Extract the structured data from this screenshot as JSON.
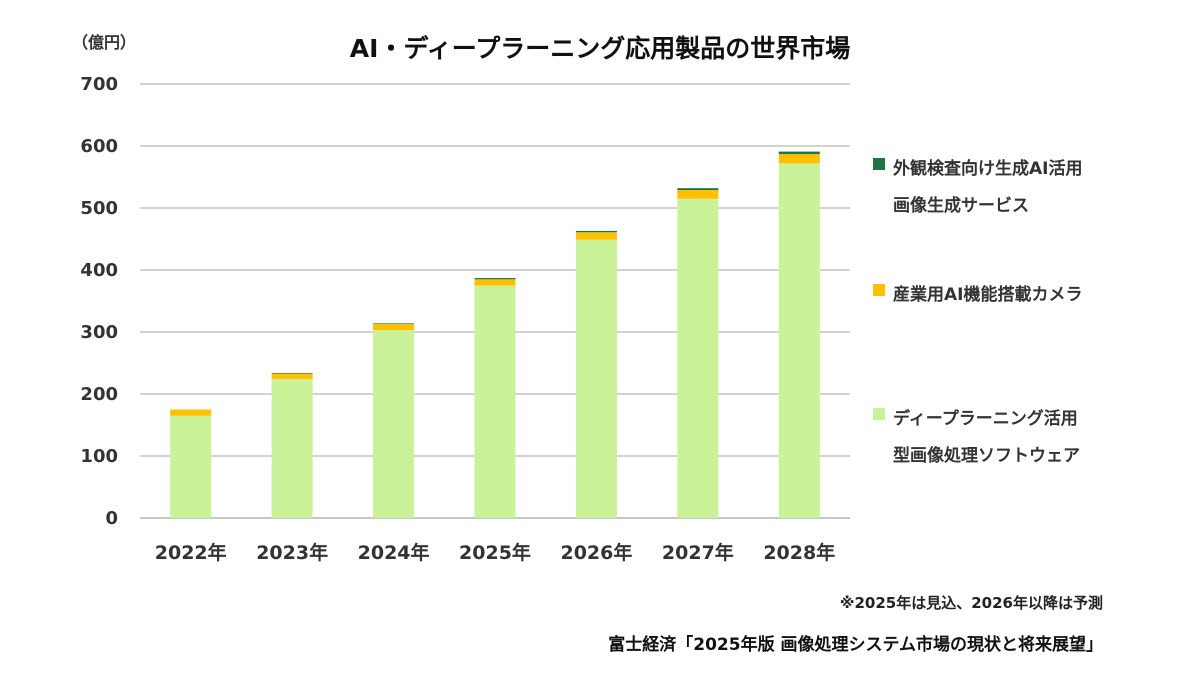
{
  "chart_data": {
    "type": "bar",
    "stacked": true,
    "title": "AI・ディープラーニング応用製品の世界市場",
    "unit_label": "（億円）",
    "ylim": [
      0,
      700
    ],
    "yticks": [
      0,
      100,
      200,
      300,
      400,
      500,
      600,
      700
    ],
    "grid": true,
    "legend_position": "right",
    "categories": [
      "2022年",
      "2023年",
      "2024年",
      "2025年",
      "2026年",
      "2027年",
      "2028年"
    ],
    "series": [
      {
        "name": "ディープラーニング活用型画像処理ソフトウェア",
        "legend_lines": [
          "ディープラーニング活用",
          "型画像処理ソフトウェア"
        ],
        "color": "#c9f299",
        "values": [
          165,
          224,
          303,
          375,
          449,
          515,
          572
        ]
      },
      {
        "name": "産業用AI機能搭載カメラ",
        "legend_lines": [
          "産業用AI機能搭載カメラ"
        ],
        "color": "#ffc000",
        "values": [
          10,
          9,
          10,
          10,
          12,
          14,
          15
        ]
      },
      {
        "name": "外観検査向け生成AI活用画像生成サービス",
        "legend_lines": [
          "外観検査向け生成AI活用",
          "画像生成サービス"
        ],
        "color": "#217346",
        "values": [
          0,
          1,
          1,
          2,
          2,
          3,
          4
        ]
      }
    ],
    "note": "※2025年は見込、2026年以降は予測",
    "source": "富士経済「2025年版 画像処理システム市場の現状と将来展望」"
  }
}
